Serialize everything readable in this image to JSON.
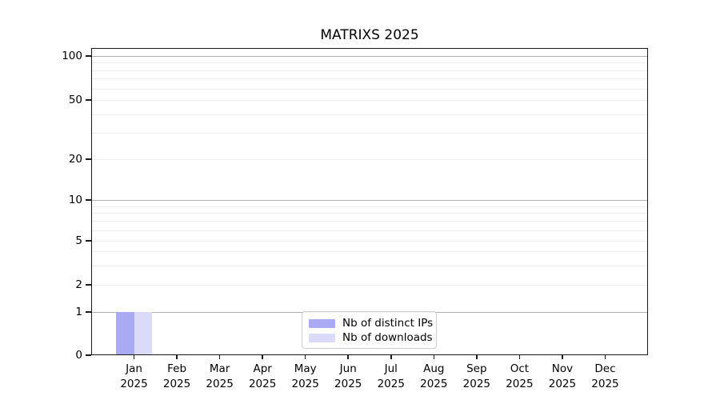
{
  "chart_data": {
    "type": "bar",
    "title": "MATRIXS 2025",
    "categories": [
      "Jan",
      "Feb",
      "Mar",
      "Apr",
      "May",
      "Jun",
      "Jul",
      "Aug",
      "Sep",
      "Oct",
      "Nov",
      "Dec"
    ],
    "category_year": "2025",
    "series": [
      {
        "name": "Nb of distinct IPs",
        "color": "#a9a9f4",
        "values": [
          1,
          0,
          0,
          0,
          0,
          0,
          0,
          0,
          0,
          0,
          0,
          0
        ]
      },
      {
        "name": "Nb of downloads",
        "color": "#dbdbf9",
        "values": [
          1,
          0,
          0,
          0,
          0,
          0,
          0,
          0,
          0,
          0,
          0,
          0
        ]
      }
    ],
    "xlabel": "",
    "ylabel": "",
    "yscale": "symlog",
    "yticks": [
      0,
      1,
      2,
      5,
      10,
      20,
      50,
      100
    ],
    "yticks_minor": [
      3,
      4,
      6,
      7,
      8,
      9,
      30,
      40,
      60,
      70,
      80,
      90
    ],
    "ylim": [
      0,
      100
    ],
    "grid": true,
    "legend_position": "lower center"
  }
}
